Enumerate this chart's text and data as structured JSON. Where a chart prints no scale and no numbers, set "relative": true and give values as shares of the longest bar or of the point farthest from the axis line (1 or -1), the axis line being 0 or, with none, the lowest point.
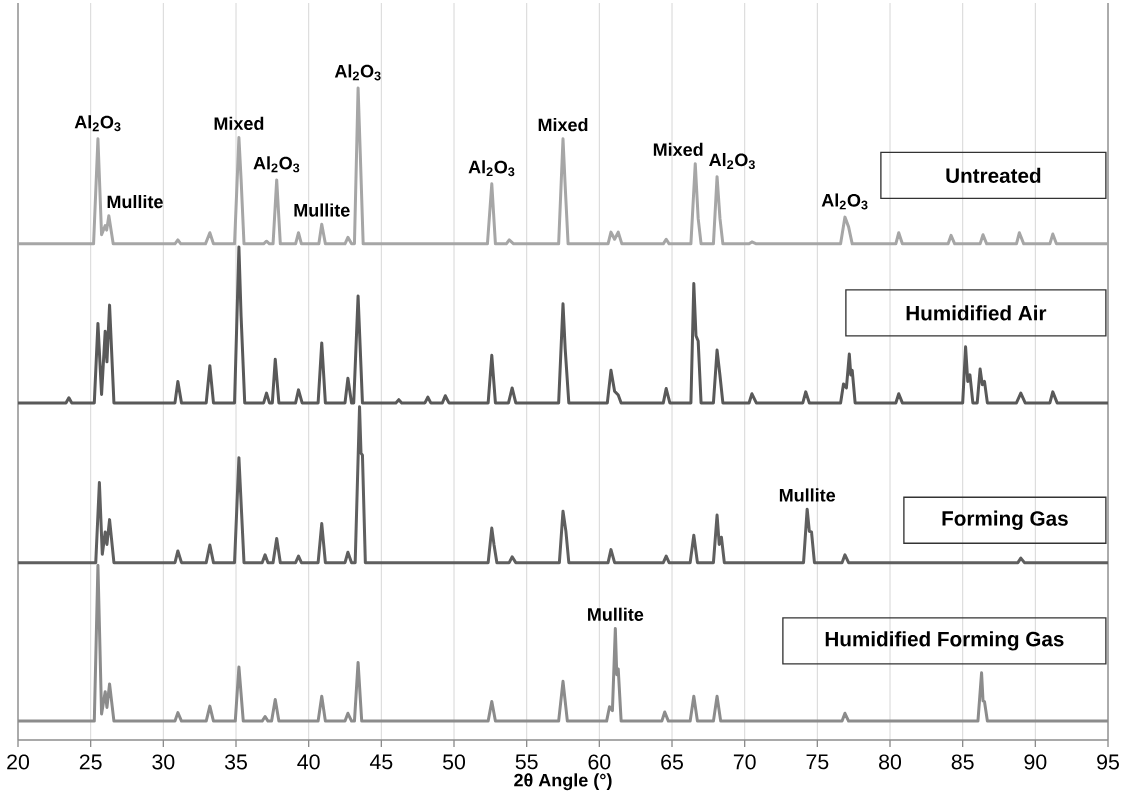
{
  "chart_data": {
    "type": "line",
    "relative": true,
    "xlabel": "2θ Angle (°)",
    "xlim": [
      20,
      95
    ],
    "xticks": [
      20,
      25,
      30,
      35,
      40,
      45,
      50,
      55,
      60,
      65,
      70,
      75,
      80,
      85,
      90,
      95
    ],
    "grid": "x",
    "line_style": "solid",
    "series": [
      {
        "name": "Untreated",
        "color": "#a6a6a6",
        "x": [
          20,
          22.7,
          25.2,
          25.5,
          25.75,
          26.0,
          26.1,
          26.25,
          26.55,
          30.8,
          31.0,
          31.2,
          32.9,
          33.2,
          33.45,
          34.9,
          35.2,
          35.35,
          35.55,
          36.9,
          37.1,
          37.3,
          37.55,
          37.8,
          38.05,
          39.1,
          39.3,
          39.5,
          40.7,
          40.9,
          41.15,
          42.5,
          42.7,
          42.95,
          43.15,
          43.4,
          43.55,
          43.75,
          52.3,
          52.6,
          52.85,
          53.6,
          53.8,
          54.1,
          57.2,
          57.5,
          57.65,
          57.85,
          60.6,
          60.8,
          61.05,
          61.3,
          61.55,
          64.4,
          64.6,
          64.8,
          66.3,
          66.6,
          66.8,
          67.0,
          67.85,
          68.1,
          68.3,
          68.5,
          70.3,
          70.5,
          70.8,
          76.6,
          76.9,
          77.15,
          77.4,
          80.4,
          80.6,
          80.85,
          84.0,
          84.2,
          84.45,
          86.2,
          86.4,
          86.65,
          88.7,
          88.9,
          89.2,
          91.0,
          91.2,
          91.45,
          95
        ],
        "values": [
          0.761,
          0.761,
          0.761,
          0.922,
          0.775,
          0.789,
          0.782,
          0.804,
          0.761,
          0.761,
          0.767,
          0.761,
          0.761,
          0.778,
          0.761,
          0.761,
          0.924,
          0.86,
          0.761,
          0.761,
          0.765,
          0.761,
          0.761,
          0.859,
          0.761,
          0.761,
          0.778,
          0.761,
          0.761,
          0.791,
          0.761,
          0.761,
          0.771,
          0.761,
          0.761,
          1.0,
          0.9,
          0.761,
          0.761,
          0.853,
          0.761,
          0.761,
          0.767,
          0.761,
          0.761,
          0.922,
          0.85,
          0.761,
          0.761,
          0.779,
          0.768,
          0.779,
          0.761,
          0.761,
          0.768,
          0.761,
          0.761,
          0.884,
          0.8,
          0.761,
          0.761,
          0.864,
          0.8,
          0.761,
          0.761,
          0.764,
          0.761,
          0.761,
          0.802,
          0.787,
          0.761,
          0.761,
          0.778,
          0.761,
          0.761,
          0.774,
          0.761,
          0.761,
          0.775,
          0.761,
          0.761,
          0.778,
          0.761,
          0.761,
          0.776,
          0.761,
          0.761
        ]
      },
      {
        "name": "Humidified Air",
        "color": "#595959",
        "x": [
          20,
          23.3,
          23.5,
          23.7,
          25.25,
          25.5,
          25.75,
          26.0,
          26.12,
          26.3,
          26.6,
          30.8,
          31.0,
          31.25,
          32.95,
          33.2,
          33.45,
          34.9,
          35.2,
          35.35,
          35.6,
          36.9,
          37.1,
          37.3,
          37.5,
          37.7,
          37.95,
          39.1,
          39.3,
          39.55,
          40.65,
          40.9,
          41.15,
          42.5,
          42.7,
          42.95,
          43.1,
          43.4,
          43.7,
          46.0,
          46.2,
          46.4,
          48.0,
          48.2,
          48.4,
          49.2,
          49.4,
          49.65,
          52.35,
          52.6,
          52.85,
          53.75,
          54.0,
          54.25,
          57.2,
          57.5,
          57.65,
          57.9,
          60.55,
          60.8,
          61.05,
          61.3,
          61.5,
          64.4,
          64.6,
          64.85,
          66.3,
          66.5,
          66.65,
          66.8,
          67.0,
          67.85,
          68.1,
          68.3,
          68.5,
          70.3,
          70.5,
          70.8,
          74.0,
          74.2,
          74.45,
          76.6,
          76.8,
          77.0,
          77.2,
          77.3,
          77.4,
          77.6,
          80.4,
          80.6,
          80.85,
          85.0,
          85.2,
          85.35,
          85.5,
          85.7,
          86.0,
          86.2,
          86.35,
          86.5,
          86.7,
          88.7,
          89.0,
          89.3,
          91.0,
          91.2,
          91.5,
          95
        ],
        "values": [
          0.517,
          0.517,
          0.525,
          0.517,
          0.517,
          0.639,
          0.53,
          0.627,
          0.58,
          0.667,
          0.517,
          0.517,
          0.55,
          0.517,
          0.517,
          0.574,
          0.517,
          0.517,
          0.756,
          0.65,
          0.517,
          0.517,
          0.532,
          0.517,
          0.517,
          0.584,
          0.517,
          0.517,
          0.537,
          0.517,
          0.517,
          0.609,
          0.517,
          0.517,
          0.555,
          0.517,
          0.517,
          0.681,
          0.517,
          0.517,
          0.522,
          0.517,
          0.517,
          0.526,
          0.517,
          0.517,
          0.528,
          0.517,
          0.517,
          0.59,
          0.517,
          0.517,
          0.54,
          0.517,
          0.517,
          0.669,
          0.6,
          0.517,
          0.517,
          0.567,
          0.535,
          0.529,
          0.517,
          0.517,
          0.539,
          0.517,
          0.517,
          0.7,
          0.62,
          0.612,
          0.517,
          0.517,
          0.598,
          0.559,
          0.517,
          0.517,
          0.531,
          0.517,
          0.517,
          0.534,
          0.517,
          0.517,
          0.546,
          0.54,
          0.592,
          0.56,
          0.567,
          0.517,
          0.517,
          0.531,
          0.517,
          0.517,
          0.603,
          0.55,
          0.56,
          0.517,
          0.517,
          0.569,
          0.545,
          0.55,
          0.517,
          0.517,
          0.532,
          0.517,
          0.517,
          0.534,
          0.517,
          0.517
        ]
      },
      {
        "name": "Forming Gas",
        "color": "#5f5f5f",
        "x": [
          20,
          25.35,
          25.6,
          25.8,
          26.0,
          26.12,
          26.3,
          26.6,
          30.8,
          31.0,
          31.25,
          32.95,
          33.2,
          33.45,
          34.9,
          35.2,
          35.55,
          36.8,
          37.0,
          37.2,
          37.55,
          37.8,
          38.05,
          39.1,
          39.3,
          39.5,
          40.65,
          40.9,
          41.15,
          42.5,
          42.7,
          42.95,
          43.2,
          43.5,
          43.6,
          43.7,
          43.9,
          52.35,
          52.6,
          52.75,
          52.95,
          53.8,
          54.0,
          54.25,
          57.25,
          57.5,
          57.7,
          57.9,
          60.6,
          60.8,
          61.05,
          64.4,
          64.6,
          64.8,
          66.25,
          66.5,
          66.75,
          67.85,
          68.1,
          68.25,
          68.4,
          68.6,
          74.05,
          74.3,
          74.45,
          74.6,
          74.8,
          76.7,
          76.9,
          77.15,
          88.8,
          89.0,
          89.25,
          95
        ],
        "values": [
          0.272,
          0.272,
          0.395,
          0.285,
          0.319,
          0.3,
          0.338,
          0.272,
          0.272,
          0.29,
          0.272,
          0.272,
          0.299,
          0.272,
          0.272,
          0.433,
          0.272,
          0.272,
          0.284,
          0.272,
          0.272,
          0.309,
          0.272,
          0.272,
          0.282,
          0.272,
          0.272,
          0.332,
          0.272,
          0.272,
          0.288,
          0.272,
          0.272,
          0.511,
          0.44,
          0.437,
          0.272,
          0.272,
          0.325,
          0.3,
          0.272,
          0.272,
          0.281,
          0.272,
          0.272,
          0.351,
          0.32,
          0.272,
          0.272,
          0.292,
          0.272,
          0.272,
          0.282,
          0.272,
          0.272,
          0.314,
          0.272,
          0.272,
          0.345,
          0.3,
          0.311,
          0.272,
          0.272,
          0.354,
          0.32,
          0.319,
          0.272,
          0.272,
          0.284,
          0.272,
          0.272,
          0.279,
          0.272,
          0.272
        ]
      },
      {
        "name": "Humidified Forming Gas",
        "color": "#8c8c8c",
        "x": [
          20,
          25.25,
          25.5,
          25.75,
          26.0,
          26.12,
          26.3,
          26.6,
          30.8,
          31.0,
          31.25,
          32.95,
          33.2,
          33.45,
          34.95,
          35.2,
          35.5,
          36.8,
          37.0,
          37.2,
          37.45,
          37.7,
          37.95,
          40.65,
          40.9,
          41.15,
          42.5,
          42.7,
          42.95,
          43.15,
          43.4,
          43.65,
          52.35,
          52.6,
          52.85,
          57.2,
          57.5,
          57.8,
          60.5,
          60.7,
          60.9,
          61.1,
          61.2,
          61.3,
          61.5,
          64.3,
          64.5,
          64.75,
          66.25,
          66.5,
          66.75,
          67.85,
          68.1,
          68.35,
          76.7,
          76.9,
          77.15,
          86.05,
          86.3,
          86.4,
          86.5,
          86.7,
          95
        ],
        "values": [
          0.029,
          0.029,
          0.268,
          0.04,
          0.074,
          0.05,
          0.086,
          0.029,
          0.029,
          0.042,
          0.029,
          0.029,
          0.052,
          0.029,
          0.029,
          0.112,
          0.029,
          0.029,
          0.036,
          0.029,
          0.029,
          0.062,
          0.029,
          0.029,
          0.067,
          0.029,
          0.029,
          0.041,
          0.029,
          0.029,
          0.119,
          0.029,
          0.029,
          0.059,
          0.029,
          0.029,
          0.09,
          0.029,
          0.029,
          0.051,
          0.045,
          0.171,
          0.1,
          0.109,
          0.029,
          0.029,
          0.043,
          0.029,
          0.029,
          0.067,
          0.029,
          0.029,
          0.067,
          0.029,
          0.029,
          0.041,
          0.029,
          0.029,
          0.103,
          0.06,
          0.059,
          0.029,
          0.029
        ]
      }
    ],
    "annotations": [
      {
        "text": "Al$_{2}$O$_{3}$",
        "x": 25.5,
        "y": 0.922
      },
      {
        "text": "Mullite",
        "x": 26.25,
        "y": 0.804
      },
      {
        "text": "Mixed",
        "x": 35.2,
        "y": 0.924
      },
      {
        "text": "Al$_{2}$O$_{3}$",
        "x": 37.8,
        "y": 0.859
      },
      {
        "text": "Mullite",
        "x": 40.9,
        "y": 0.791
      },
      {
        "text": "Al$_{2}$O$_{3}$",
        "x": 43.4,
        "y": 1.0
      },
      {
        "text": "Al$_{2}$O$_{3}$",
        "x": 52.6,
        "y": 0.853
      },
      {
        "text": "Mixed",
        "x": 57.5,
        "y": 0.922
      },
      {
        "text": "Mixed",
        "x": 66.6,
        "y": 0.884
      },
      {
        "text": "Al$_{2}$O$_{3}$",
        "x": 68.1,
        "y": 0.864
      },
      {
        "text": "Al$_{2}$O$_{3}$",
        "x": 76.9,
        "y": 0.802
      },
      {
        "text": "Mullite",
        "x": 74.3,
        "y": 0.354
      },
      {
        "text": "Mullite",
        "x": 61.1,
        "y": 0.171
      }
    ]
  }
}
